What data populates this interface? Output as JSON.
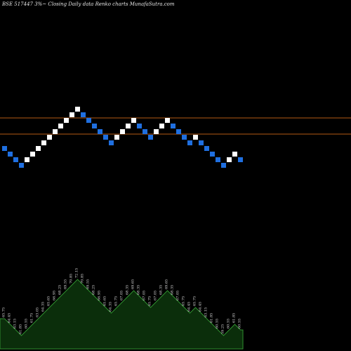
{
  "header": {
    "title": "BSE 517447 3%~ Closing Daily data Renko charts MunafaSutra.com"
  },
  "colors": {
    "background": "#000000",
    "up_brick": "#ffffff",
    "down_brick": "#1f6fe0",
    "reference_line": "#b35a14",
    "volume_fill": "#0b2e0b",
    "volume_stroke": "#2f8f2f"
  },
  "chart_data": {
    "type": "renko",
    "y_reference_lines": [
      168,
      191
    ],
    "bricks": [
      {
        "dir": "down",
        "level": 208
      },
      {
        "dir": "down",
        "level": 216
      },
      {
        "dir": "down",
        "level": 224
      },
      {
        "dir": "down",
        "level": 232
      },
      {
        "dir": "up",
        "level": 224
      },
      {
        "dir": "up",
        "level": 216
      },
      {
        "dir": "up",
        "level": 208
      },
      {
        "dir": "up",
        "level": 200
      },
      {
        "dir": "up",
        "level": 192
      },
      {
        "dir": "up",
        "level": 184
      },
      {
        "dir": "up",
        "level": 176
      },
      {
        "dir": "up",
        "level": 168
      },
      {
        "dir": "up",
        "level": 160
      },
      {
        "dir": "up",
        "level": 152
      },
      {
        "dir": "down",
        "level": 160
      },
      {
        "dir": "down",
        "level": 168
      },
      {
        "dir": "down",
        "level": 176
      },
      {
        "dir": "down",
        "level": 184
      },
      {
        "dir": "down",
        "level": 192
      },
      {
        "dir": "down",
        "level": 200
      },
      {
        "dir": "up",
        "level": 192
      },
      {
        "dir": "up",
        "level": 184
      },
      {
        "dir": "up",
        "level": 176
      },
      {
        "dir": "up",
        "level": 168
      },
      {
        "dir": "down",
        "level": 176
      },
      {
        "dir": "down",
        "level": 184
      },
      {
        "dir": "down",
        "level": 192
      },
      {
        "dir": "up",
        "level": 184
      },
      {
        "dir": "up",
        "level": 176
      },
      {
        "dir": "up",
        "level": 168
      },
      {
        "dir": "down",
        "level": 176
      },
      {
        "dir": "down",
        "level": 184
      },
      {
        "dir": "down",
        "level": 192
      },
      {
        "dir": "down",
        "level": 200
      },
      {
        "dir": "up",
        "level": 192
      },
      {
        "dir": "down",
        "level": 200
      },
      {
        "dir": "down",
        "level": 208
      },
      {
        "dir": "down",
        "level": 216
      },
      {
        "dir": "down",
        "level": 224
      },
      {
        "dir": "down",
        "level": 232
      },
      {
        "dir": "up",
        "level": 224
      },
      {
        "dir": "up",
        "level": 216
      },
      {
        "dir": "down",
        "level": 224
      }
    ],
    "volume_labels": [
      "65.75",
      "64.45",
      "63.15",
      "61.85",
      "60.55",
      "61.75",
      "63.05",
      "64.35",
      "65.65",
      "66.95",
      "68.25",
      "69.55",
      "70.85",
      "72.15",
      "70.85",
      "69.55",
      "68.25",
      "66.95",
      "65.65",
      "64.35",
      "65.75",
      "67.05",
      "68.35",
      "69.65",
      "68.35",
      "67.05",
      "65.75",
      "67.05",
      "68.35",
      "69.65",
      "68.35",
      "67.05",
      "65.75",
      "64.45",
      "65.75",
      "64.45",
      "63.15",
      "61.85",
      "60.55",
      "59.25",
      "60.55",
      "61.85",
      "60.55"
    ]
  }
}
